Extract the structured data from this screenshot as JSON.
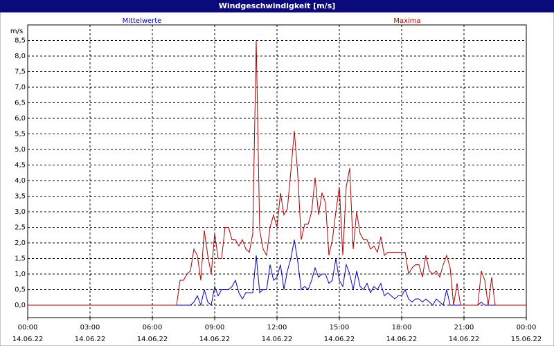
{
  "chart_data": {
    "type": "line",
    "title": "Windgeschwindigkeit [m/s]",
    "y_label": "m/s",
    "x": [
      0,
      430,
      440,
      450,
      460,
      470,
      480,
      490,
      500,
      510,
      520,
      530,
      540,
      550,
      560,
      570,
      580,
      590,
      600,
      610,
      620,
      630,
      640,
      650,
      660,
      670,
      680,
      690,
      700,
      710,
      720,
      730,
      740,
      750,
      760,
      770,
      780,
      790,
      800,
      810,
      820,
      830,
      840,
      850,
      860,
      870,
      880,
      890,
      900,
      910,
      920,
      930,
      940,
      950,
      960,
      970,
      980,
      990,
      1000,
      1010,
      1020,
      1030,
      1040,
      1050,
      1060,
      1070,
      1080,
      1090,
      1100,
      1110,
      1120,
      1130,
      1140,
      1150,
      1160,
      1170,
      1180,
      1190,
      1200,
      1210,
      1220,
      1230,
      1240,
      1250,
      1260,
      1270,
      1280,
      1290,
      1300,
      1310,
      1320,
      1330,
      1340,
      1350,
      1360,
      1370,
      1440
    ],
    "series": [
      {
        "name": "Mittelwerte",
        "color": "#0000c0",
        "values": [
          0,
          0,
          0,
          0,
          0,
          0,
          0.1,
          0.3,
          0,
          0.5,
          0.1,
          0,
          0.6,
          0.3,
          0.5,
          0.5,
          0.5,
          0.6,
          0.8,
          0.4,
          0.2,
          0.4,
          0.4,
          0.4,
          1.6,
          0.4,
          0.5,
          0.5,
          1.3,
          0.8,
          0.9,
          1.3,
          0.5,
          1.1,
          1.5,
          2.1,
          1.4,
          0.5,
          0.6,
          0.5,
          0.8,
          1.2,
          0.9,
          1.0,
          1.0,
          0.7,
          0.8,
          1.5,
          0.8,
          0.6,
          1.3,
          1.0,
          0.5,
          1.1,
          0.6,
          0.5,
          0.7,
          0.4,
          0.6,
          0.5,
          0.7,
          0.3,
          0.4,
          0.3,
          0.2,
          0.3,
          0.3,
          0.5,
          0.2,
          0.1,
          0.2,
          0.2,
          0.1,
          0.2,
          0.1,
          0,
          0.2,
          0.1,
          0,
          0.5,
          0,
          0,
          0,
          0,
          0,
          0,
          0,
          0,
          0,
          0.1,
          0,
          0,
          0,
          0,
          0,
          0,
          0
        ]
      },
      {
        "name": "Maxima",
        "color": "#b00000",
        "values": [
          0,
          0,
          0.8,
          0.8,
          1.0,
          1.1,
          1.8,
          1.6,
          0.8,
          2.4,
          1.6,
          1.0,
          2.3,
          1.5,
          1.5,
          2.5,
          2.5,
          2.1,
          2.1,
          1.9,
          2.1,
          1.8,
          1.7,
          2.3,
          8.5,
          2.4,
          1.8,
          1.6,
          2.5,
          2.9,
          2.5,
          3.6,
          2.9,
          3.1,
          4.3,
          5.6,
          4.2,
          2.1,
          2.6,
          2.6,
          3.0,
          4.1,
          2.9,
          3.6,
          3.3,
          1.6,
          2.1,
          3.0,
          3.8,
          1.6,
          3.8,
          4.4,
          1.8,
          3.0,
          2.3,
          2.1,
          2.1,
          1.8,
          1.9,
          1.7,
          2.2,
          1.6,
          1.7,
          1.7,
          1.7,
          1.7,
          1.7,
          1.7,
          1.0,
          1.2,
          1.3,
          1.3,
          0.9,
          1.6,
          1.1,
          1.0,
          1.1,
          0.9,
          1.3,
          1.6,
          1.2,
          0,
          0.7,
          0,
          0,
          0,
          0,
          0,
          0,
          1.1,
          0.8,
          0,
          0.9,
          0,
          0,
          0,
          0
        ]
      }
    ],
    "xlim": [
      0,
      1440
    ],
    "xticks": [
      {
        "value": 0,
        "label": "00:00"
      },
      {
        "value": 180,
        "label": "03:00"
      },
      {
        "value": 360,
        "label": "06:00"
      },
      {
        "value": 540,
        "label": "09:00"
      },
      {
        "value": 720,
        "label": "12:00"
      },
      {
        "value": 900,
        "label": "15:00"
      },
      {
        "value": 1080,
        "label": "18:00"
      },
      {
        "value": 1260,
        "label": "21:00"
      },
      {
        "value": 1440,
        "label": "00:00"
      }
    ],
    "xtick_dates": [
      "14.06.22",
      "14.06.22",
      "14.06.22",
      "14.06.22",
      "14.06.22",
      "14.06.22",
      "14.06.22",
      "14.06.22",
      "15.06.22"
    ],
    "ylim": [
      -0.4,
      9.0
    ],
    "yticks": [
      {
        "value": 0,
        "label": "0,0"
      },
      {
        "value": 0.5,
        "label": "0,5"
      },
      {
        "value": 1,
        "label": "1,0"
      },
      {
        "value": 1.5,
        "label": "1,5"
      },
      {
        "value": 2,
        "label": "2,0"
      },
      {
        "value": 2.5,
        "label": "2,5"
      },
      {
        "value": 3,
        "label": "3,0"
      },
      {
        "value": 3.5,
        "label": "3,5"
      },
      {
        "value": 4,
        "label": "4,0"
      },
      {
        "value": 4.5,
        "label": "4,5"
      },
      {
        "value": 5,
        "label": "5,0"
      },
      {
        "value": 5.5,
        "label": "5,5"
      },
      {
        "value": 6,
        "label": "6,0"
      },
      {
        "value": 6.5,
        "label": "6,5"
      },
      {
        "value": 7,
        "label": "7,0"
      },
      {
        "value": 7.5,
        "label": "7,5"
      },
      {
        "value": 8,
        "label": "8,0"
      },
      {
        "value": 8.5,
        "label": "8,5"
      }
    ],
    "grid": true
  }
}
